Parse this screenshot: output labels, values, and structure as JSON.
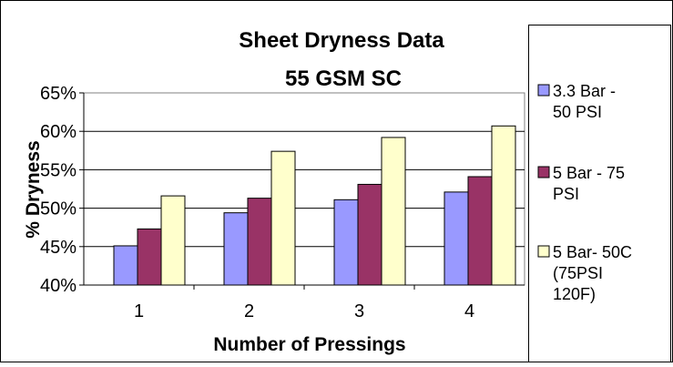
{
  "chart_data": {
    "type": "bar",
    "title_lines": [
      "Sheet Dryness Data",
      "55 GSM SC"
    ],
    "xlabel": "Number of Pressings",
    "ylabel": "% Dryness",
    "categories": [
      "1",
      "2",
      "3",
      "4"
    ],
    "ylim": [
      40,
      65
    ],
    "yticks": [
      40,
      45,
      50,
      55,
      60,
      65
    ],
    "ytick_labels": [
      "40%",
      "45%",
      "50%",
      "55%",
      "60%",
      "65%"
    ],
    "grid": true,
    "legend_position": "right",
    "series": [
      {
        "name": "3.3 Bar - 50 PSI",
        "legend_lines": [
          "3.3 Bar -",
          "50 PSI"
        ],
        "color": "#9999ff",
        "values": [
          45.1,
          49.4,
          51.1,
          52.1
        ]
      },
      {
        "name": "5 Bar - 75 PSI",
        "legend_lines": [
          "5 Bar - 75",
          "PSI"
        ],
        "color": "#993366",
        "values": [
          47.3,
          51.3,
          53.1,
          54.1
        ]
      },
      {
        "name": "5 Bar- 50C (75PSI 120F)",
        "legend_lines": [
          "5 Bar- 50C",
          "(75PSI",
          "120F)"
        ],
        "color": "#ffffcc",
        "values": [
          51.6,
          57.4,
          59.2,
          60.7
        ]
      }
    ]
  }
}
